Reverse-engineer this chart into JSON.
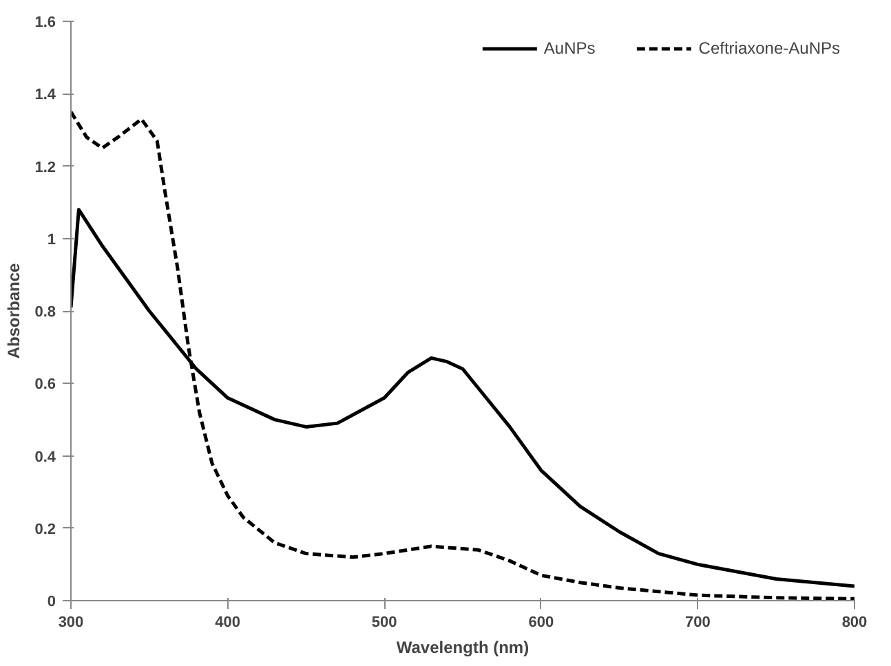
{
  "chart_data": {
    "type": "line",
    "xlabel": "Wavelength (nm)",
    "ylabel": "Absorbance",
    "xlim": [
      300,
      800
    ],
    "xticks": [
      300,
      400,
      500,
      600,
      700,
      800
    ],
    "ylim": [
      0,
      1.6
    ],
    "yticks": [
      0,
      0.2,
      0.4,
      0.6,
      0.8,
      1,
      1.2,
      1.4,
      1.6
    ],
    "grid": false,
    "legend": "top right",
    "marker": "none",
    "series": [
      {
        "name": "AuNPs",
        "color": "#000000",
        "line_style": "solid",
        "x": [
          300,
          305,
          320,
          350,
          380,
          400,
          430,
          450,
          470,
          500,
          515,
          530,
          540,
          550,
          565,
          580,
          600,
          625,
          650,
          675,
          700,
          750,
          800
        ],
        "values": [
          0.81,
          1.08,
          0.98,
          0.8,
          0.64,
          0.56,
          0.5,
          0.48,
          0.49,
          0.56,
          0.63,
          0.67,
          0.66,
          0.64,
          0.56,
          0.48,
          0.36,
          0.26,
          0.19,
          0.13,
          0.1,
          0.06,
          0.04
        ]
      },
      {
        "name": "Ceftriaxone-AuNPs",
        "color": "#000000",
        "line_style": "dashed",
        "x": [
          300,
          310,
          320,
          330,
          345,
          355,
          360,
          368,
          375,
          382,
          390,
          400,
          410,
          430,
          450,
          480,
          500,
          530,
          560,
          580,
          600,
          625,
          650,
          700,
          750,
          800
        ],
        "values": [
          1.35,
          1.28,
          1.25,
          1.28,
          1.33,
          1.27,
          1.13,
          0.92,
          0.7,
          0.52,
          0.38,
          0.29,
          0.23,
          0.16,
          0.13,
          0.12,
          0.13,
          0.15,
          0.14,
          0.11,
          0.07,
          0.05,
          0.035,
          0.015,
          0.008,
          0.005
        ]
      }
    ]
  }
}
